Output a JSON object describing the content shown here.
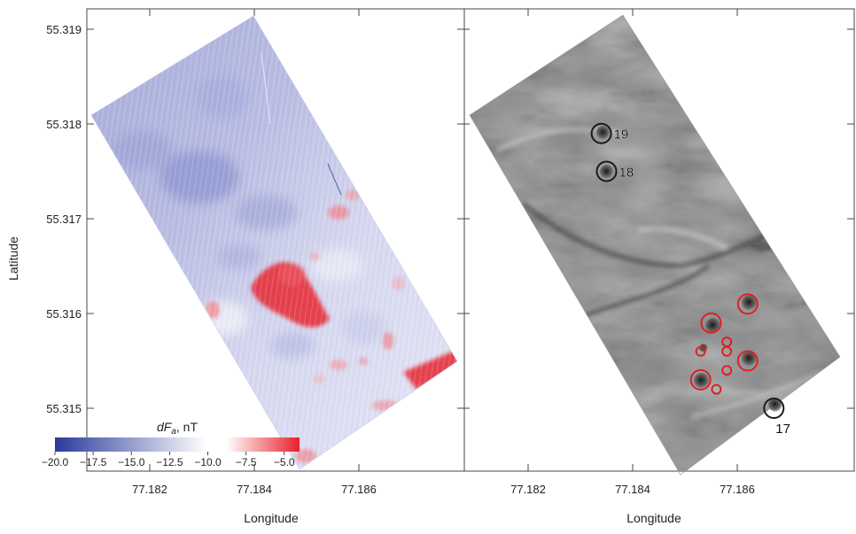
{
  "chart_data": {
    "type": "heatmap",
    "ylabel": "Latitude",
    "panels": [
      {
        "name": "magnetic-anomaly",
        "xlabel": "Longitude",
        "x_ticks": [
          "77.182",
          "77.184",
          "77.186"
        ],
        "x_tick_values": [
          77.182,
          77.184,
          77.186
        ],
        "y_ticks": [
          "55.319",
          "55.318",
          "55.317",
          "55.316",
          "55.315"
        ],
        "y_tick_values": [
          55.319,
          55.318,
          55.317,
          55.316,
          55.315
        ],
        "xlim": [
          77.1808,
          77.1882
        ],
        "ylim": [
          55.3143,
          55.3193
        ],
        "colorbar": {
          "label_main": "dF",
          "label_sub": "a",
          "label_unit": ", nT",
          "ticks": [
            "−20.0",
            "−17.5",
            "−15.0",
            "−12.5",
            "−10.0",
            "−7.5",
            "−5.0"
          ],
          "tick_values": [
            -20.0,
            -17.5,
            -15.0,
            -12.5,
            -10.0,
            -7.5,
            -5.0
          ],
          "range": [
            -20.0,
            -4.0
          ],
          "colors": [
            "#2b3a9b",
            "#ffffff",
            "#e8202a"
          ]
        }
      },
      {
        "name": "shaded-relief",
        "xlabel": "Longitude",
        "x_ticks": [
          "77.182",
          "77.184",
          "77.186"
        ],
        "x_tick_values": [
          77.182,
          77.184,
          77.186
        ],
        "xlim": [
          77.1808,
          77.1882
        ],
        "ylim": [
          55.3143,
          55.3193
        ],
        "markers": [
          {
            "label": "19",
            "lon": 77.1834,
            "lat": 55.3179,
            "color": "#1a1a1a",
            "size": "large"
          },
          {
            "label": "18",
            "lon": 77.1835,
            "lat": 55.3175,
            "color": "#1a1a1a",
            "size": "large"
          },
          {
            "label": "17",
            "lon": 77.1867,
            "lat": 55.315,
            "color": "#1a1a1a",
            "size": "large"
          },
          {
            "label": "",
            "lon": 77.1862,
            "lat": 55.3161,
            "color": "#e02020",
            "size": "large"
          },
          {
            "label": "",
            "lon": 77.1855,
            "lat": 55.3159,
            "color": "#e02020",
            "size": "large"
          },
          {
            "label": "",
            "lon": 77.1862,
            "lat": 55.3155,
            "color": "#e02020",
            "size": "large"
          },
          {
            "label": "",
            "lon": 77.1853,
            "lat": 55.3153,
            "color": "#e02020",
            "size": "large"
          },
          {
            "label": "",
            "lon": 77.1853,
            "lat": 55.3156,
            "color": "#e02020",
            "size": "small"
          },
          {
            "label": "",
            "lon": 77.1858,
            "lat": 55.3157,
            "color": "#e02020",
            "size": "small"
          },
          {
            "label": "",
            "lon": 77.1858,
            "lat": 55.3156,
            "color": "#e02020",
            "size": "small"
          },
          {
            "label": "",
            "lon": 77.1858,
            "lat": 55.3154,
            "color": "#e02020",
            "size": "small"
          },
          {
            "label": "",
            "lon": 77.1856,
            "lat": 55.3152,
            "color": "#e02020",
            "size": "small"
          }
        ]
      }
    ]
  }
}
